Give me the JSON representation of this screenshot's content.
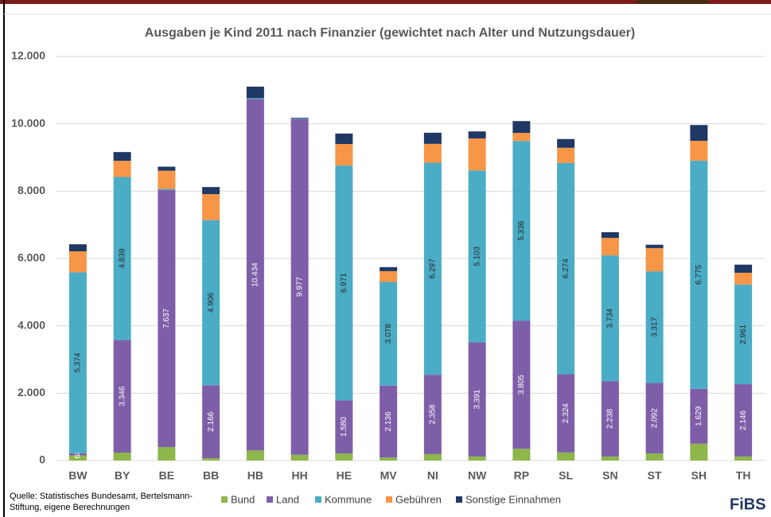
{
  "chart_data": {
    "type": "bar",
    "stacked": true,
    "title": "Ausgaben je Kind 2011 nach Finanzier (gewichtet nach Alter und Nutzungsdauer)",
    "categories": [
      "BW",
      "BY",
      "BE",
      "BB",
      "HB",
      "HH",
      "HE",
      "MV",
      "NI",
      "NW",
      "RP",
      "SL",
      "SN",
      "ST",
      "SH",
      "TH"
    ],
    "series": [
      {
        "name": "Bund",
        "color": "#8db64b",
        "values": [
          150,
          236,
          400,
          70,
          300,
          170,
          210,
          90,
          190,
          120,
          350,
          240,
          120,
          210,
          500,
          120
        ]
      },
      {
        "name": "Land",
        "color": "#7e5ea8",
        "values": [
          68,
          3346,
          7637,
          2166,
          10434,
          9977,
          1580,
          2136,
          2358,
          3391,
          3805,
          2324,
          2238,
          2092,
          1629,
          2146
        ],
        "value_labels": [
          "68",
          "3.346",
          "7.637",
          "2.166",
          "10.434",
          "9.977",
          "1.580",
          "2.136",
          "2.358",
          "3.391",
          "3.805",
          "2.324",
          "2.238",
          "2.092",
          "1.629",
          "2.146"
        ]
      },
      {
        "name": "Kommune",
        "color": "#4bacc6",
        "values": [
          5374,
          4839,
          30,
          4906,
          30,
          20,
          6971,
          3078,
          6297,
          5103,
          5336,
          6274,
          3734,
          3317,
          6775,
          2961
        ],
        "value_labels": [
          "5.374",
          "4.839",
          null,
          "4.906",
          null,
          null,
          "6.971",
          "3.078",
          "6.297",
          "5.103",
          "5.336",
          "6.274",
          "3.734",
          "3.317",
          "6.775",
          "2.961"
        ]
      },
      {
        "name": "Gebühren",
        "color": "#f79646",
        "values": [
          620,
          480,
          540,
          770,
          0,
          0,
          640,
          320,
          560,
          950,
          240,
          450,
          520,
          690,
          590,
          350
        ]
      },
      {
        "name": "Sonstige Einnahmen",
        "color": "#1f3864",
        "values": [
          210,
          260,
          120,
          210,
          340,
          15,
          310,
          120,
          330,
          210,
          350,
          260,
          170,
          100,
          470,
          240
        ]
      }
    ],
    "ylim": [
      0,
      12000
    ],
    "yticks": [
      0,
      {
        "value": 2000,
        "label": "2.000"
      },
      {
        "value": 4000,
        "label": "4.000"
      },
      {
        "value": 6000,
        "label": "6.000"
      },
      {
        "value": 8000,
        "label": "8.000"
      },
      {
        "value": 10000,
        "label": "10.000"
      },
      {
        "value": 12000,
        "label": "12.000"
      }
    ],
    "grid": true,
    "legend": "bottom",
    "source": [
      "Quelle:  Statistisches Bundesamt, Bertelsmann-",
      "Stiftung, eigene Berechnungen"
    ],
    "logo": "FiBS"
  }
}
